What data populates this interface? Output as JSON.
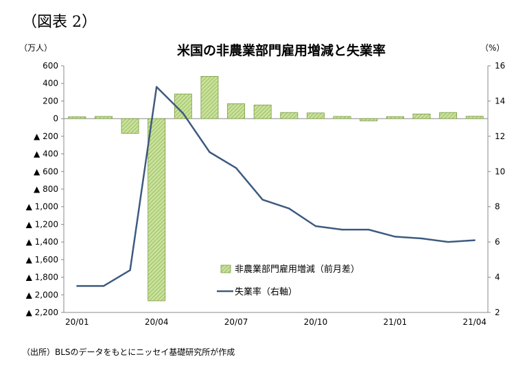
{
  "figure_label": "（図表 2）",
  "source_note": "（出所）BLSのデータをもとにニッセイ基礎研究所が作成",
  "colors": {
    "bar_fill": "#c9e29b",
    "bar_hatch": "#8fb155",
    "bar_stroke": "#7a9a44",
    "line": "#3d5a7f"
  },
  "chart_data": {
    "type": "bar",
    "title": "米国の非農業部門雇用増減と失業率",
    "left_unit": "（万人）",
    "right_unit": "（%）",
    "categories": [
      "20/01",
      "20/02",
      "20/03",
      "20/04",
      "20/05",
      "20/06",
      "20/07",
      "20/08",
      "20/09",
      "20/10",
      "20/11",
      "20/12",
      "21/01",
      "21/02",
      "21/03",
      "21/04"
    ],
    "x_tick_labels": [
      "20/01",
      "",
      "",
      "20/04",
      "",
      "",
      "20/07",
      "",
      "",
      "20/10",
      "",
      "",
      "21/01",
      "",
      "",
      "21/04"
    ],
    "left_axis": {
      "ylim": [
        -2200,
        600
      ],
      "ticks": [
        600,
        400,
        200,
        0,
        -200,
        -400,
        -600,
        -800,
        -1000,
        -1200,
        -1400,
        -1600,
        -1800,
        -2000,
        -2200
      ],
      "tick_labels": [
        "600",
        "400",
        "200",
        "0",
        "▲ 200",
        "▲ 400",
        "▲ 600",
        "▲ 800",
        "▲ 1,000",
        "▲ 1,200",
        "▲ 1,400",
        "▲ 1,600",
        "▲ 1,800",
        "▲ 2,000",
        "▲ 2,200"
      ]
    },
    "right_axis": {
      "ylim": [
        2,
        16
      ],
      "ticks": [
        16,
        14,
        12,
        10,
        8,
        6,
        4,
        2
      ],
      "tick_labels": [
        "16",
        "14",
        "12",
        "10",
        "8",
        "6",
        "4",
        "2"
      ]
    },
    "series": [
      {
        "name": "非農業部門雇用増減（前月差）",
        "type": "bar",
        "axis": "left",
        "values": [
          21,
          25,
          -168,
          -2068,
          280,
          480,
          170,
          155,
          70,
          65,
          25,
          -25,
          23,
          53,
          70,
          27
        ]
      },
      {
        "name": "失業率（右軸）",
        "type": "line",
        "axis": "right",
        "values": [
          3.5,
          3.5,
          4.4,
          14.8,
          13.3,
          11.1,
          10.2,
          8.4,
          7.9,
          6.9,
          6.7,
          6.7,
          6.3,
          6.2,
          6.0,
          6.1
        ]
      }
    ],
    "grid": false,
    "legend_position": "bottom-center"
  }
}
